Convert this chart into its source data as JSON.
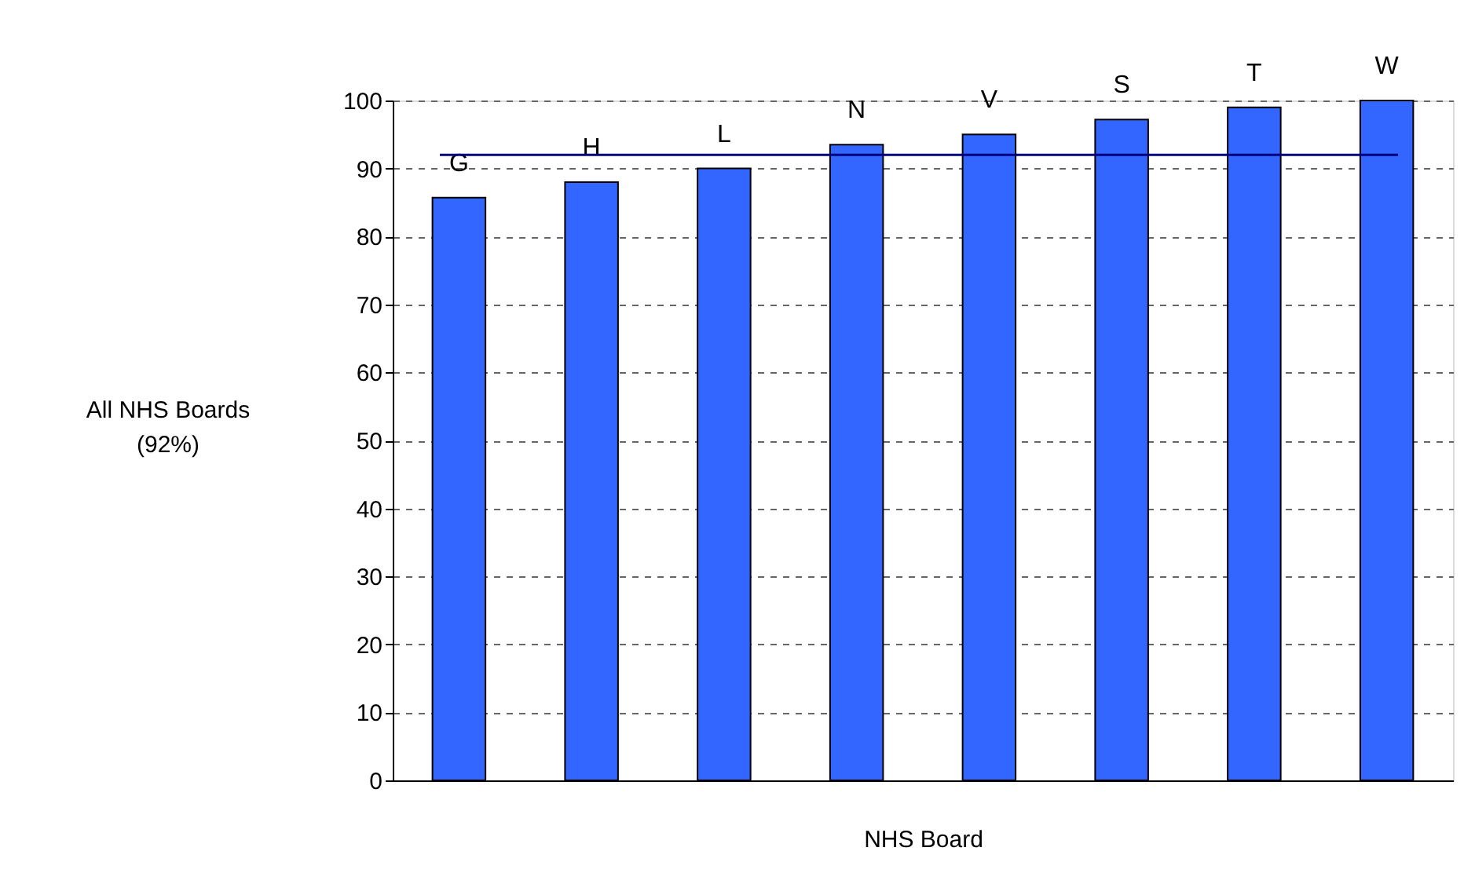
{
  "chart_data": {
    "type": "bar",
    "xlabel": "NHS Board",
    "categories": [
      "G",
      "H",
      "L",
      "N",
      "V",
      "S",
      "T",
      "W"
    ],
    "values": [
      85.7,
      88,
      90,
      93.5,
      95,
      97.2,
      99,
      100
    ],
    "color": "#3366ff",
    "ylim": [
      0,
      100
    ],
    "yticks": [
      0,
      10,
      20,
      30,
      40,
      50,
      60,
      70,
      80,
      90,
      100
    ],
    "grid": "y",
    "ref_lines": [
      {
        "axis": "y",
        "value": 92,
        "color": "#000080"
      }
    ],
    "annotations": [
      "All NHS Boards (92%)"
    ]
  }
}
